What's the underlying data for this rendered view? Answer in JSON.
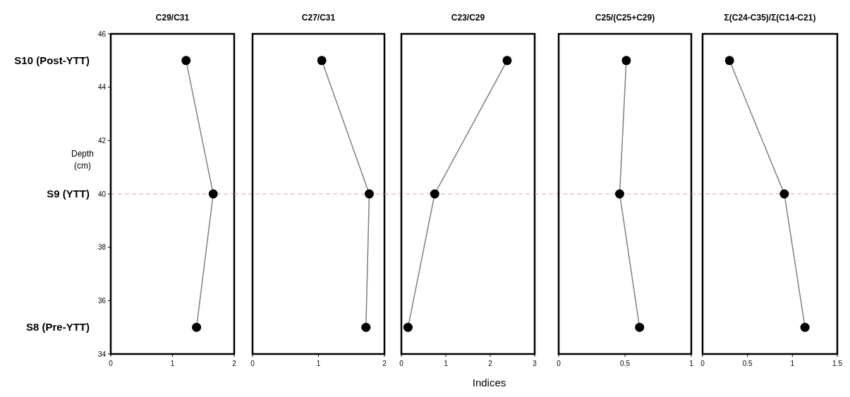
{
  "chart_data": [
    {
      "type": "line",
      "title": "C29/C31",
      "ylabel": "Depth (cm)",
      "x": [
        1.22,
        1.66,
        1.39
      ],
      "values": [
        45,
        40,
        35
      ],
      "color": "#808080",
      "marker": "circle",
      "xlim": [
        0,
        2
      ],
      "xticks": [
        0,
        1,
        2
      ],
      "ylim": [
        34,
        46
      ],
      "yticks": [
        34,
        36,
        38,
        40,
        42,
        44,
        46
      ],
      "ref_lines": [
        {
          "axis": "y",
          "value": 40,
          "color": "#e6a0a0",
          "line_style": "dashed"
        }
      ],
      "annotations": [
        "S10 (Post-YTT)",
        "S9 (YTT)",
        "S8 (Pre-YTT)"
      ]
    },
    {
      "type": "line",
      "title": "C27/C31",
      "x": [
        1.05,
        1.77,
        1.72
      ],
      "values": [
        45,
        40,
        35
      ],
      "color": "#808080",
      "marker": "circle",
      "xlim": [
        0,
        2
      ],
      "xticks": [
        0,
        1,
        2
      ],
      "ylim": [
        34,
        46
      ],
      "tick_labels": "x",
      "ref_lines": [
        {
          "axis": "y",
          "value": 40,
          "color": "#e6a0a0",
          "line_style": "dashed"
        }
      ]
    },
    {
      "type": "line",
      "title": "C23/C29",
      "xlabel": "Indices",
      "x": [
        2.38,
        0.75,
        0.15
      ],
      "values": [
        45,
        40,
        35
      ],
      "color": "#808080",
      "marker": "circle",
      "xlim": [
        0,
        3
      ],
      "xticks": [
        0,
        1,
        2,
        3
      ],
      "ylim": [
        34,
        46
      ],
      "tick_labels": "x",
      "ref_lines": [
        {
          "axis": "y",
          "value": 40,
          "color": "#e6a0a0",
          "line_style": "dashed"
        }
      ]
    },
    {
      "type": "line",
      "title": "C25/(C25+C29)",
      "x": [
        0.51,
        0.46,
        0.61
      ],
      "values": [
        45,
        40,
        35
      ],
      "color": "#808080",
      "marker": "circle",
      "xlim": [
        0,
        1
      ],
      "xticks": [
        0,
        0.5,
        1
      ],
      "ylim": [
        34,
        46
      ],
      "tick_labels": "x",
      "ref_lines": [
        {
          "axis": "y",
          "value": 40,
          "color": "#e6a0a0",
          "line_style": "dashed"
        }
      ]
    },
    {
      "type": "line",
      "title": "Σ(C24-C35)/Σ(C14-C21)",
      "x": [
        0.3,
        0.91,
        1.14
      ],
      "values": [
        45,
        40,
        35
      ],
      "color": "#808080",
      "marker": "circle",
      "xlim": [
        0,
        1.5
      ],
      "xticks": [
        0,
        0.5,
        1,
        1.5
      ],
      "ylim": [
        34,
        46
      ],
      "tick_labels": "x",
      "ref_lines": [
        {
          "axis": "y",
          "value": 40,
          "color": "#e6a0a0",
          "line_style": "dashed"
        }
      ]
    }
  ]
}
